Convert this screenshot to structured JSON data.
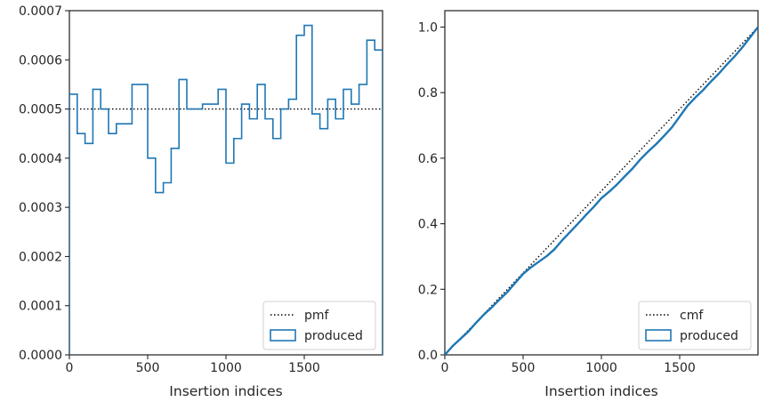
{
  "chart_data": [
    {
      "type": "line",
      "xlabel": "Insertion indices",
      "ylabel": "",
      "xlim": [
        0,
        2000
      ],
      "ylim": [
        0,
        0.0007
      ],
      "x_ticks": [
        0,
        500,
        1000,
        1500
      ],
      "x_tick_labels": [
        "0",
        "500",
        "1000",
        "1500"
      ],
      "y_ticks": [
        0,
        0.0001,
        0.0002,
        0.0003,
        0.0004,
        0.0005,
        0.0006,
        0.0007
      ],
      "y_tick_labels": [
        "0.0000",
        "0.0001",
        "0.0002",
        "0.0003",
        "0.0004",
        "0.0005",
        "0.0006",
        "0.0007"
      ],
      "legend_position": "lower-right",
      "series": [
        {
          "name": "pmf",
          "style": "dotted",
          "color": "#000000",
          "x": [
            0,
            2000
          ],
          "values": [
            0.0005,
            0.0005
          ]
        },
        {
          "name": "produced",
          "style": "step-histogram",
          "color": "#1f77b4",
          "bin_edges": [
            0,
            50,
            100,
            150,
            200,
            250,
            300,
            350,
            400,
            450,
            500,
            550,
            600,
            650,
            700,
            750,
            800,
            850,
            900,
            950,
            1000,
            1050,
            1100,
            1150,
            1200,
            1250,
            1300,
            1350,
            1400,
            1450,
            1500,
            1550,
            1600,
            1650,
            1700,
            1750,
            1800,
            1850,
            1900,
            1950,
            2000
          ],
          "values": [
            0.00053,
            0.00045,
            0.00043,
            0.00054,
            0.0005,
            0.00045,
            0.00047,
            0.00047,
            0.00055,
            0.00055,
            0.0004,
            0.00033,
            0.00035,
            0.00042,
            0.00056,
            0.0005,
            0.0005,
            0.00051,
            0.00051,
            0.00054,
            0.00039,
            0.00044,
            0.00051,
            0.00048,
            0.00055,
            0.00048,
            0.00044,
            0.0005,
            0.00052,
            0.00065,
            0.00067,
            0.00049,
            0.00046,
            0.00052,
            0.00048,
            0.00054,
            0.00051,
            0.00055,
            0.00064,
            0.00062
          ]
        }
      ]
    },
    {
      "type": "line",
      "xlabel": "Insertion indices",
      "ylabel": "",
      "xlim": [
        0,
        2000
      ],
      "ylim": [
        0,
        1.05
      ],
      "x_ticks": [
        0,
        500,
        1000,
        1500
      ],
      "x_tick_labels": [
        "0",
        "500",
        "1000",
        "1500"
      ],
      "y_ticks": [
        0,
        0.2,
        0.4,
        0.6,
        0.8,
        1.0
      ],
      "y_tick_labels": [
        "0.0",
        "0.2",
        "0.4",
        "0.6",
        "0.8",
        "1.0"
      ],
      "legend_position": "lower-right",
      "series": [
        {
          "name": "cmf",
          "style": "dotted",
          "color": "#000000",
          "x": [
            0,
            2000
          ],
          "values": [
            0,
            1.0
          ]
        },
        {
          "name": "produced",
          "style": "cumulative",
          "color": "#1f77b4",
          "x": [
            0,
            50,
            100,
            150,
            200,
            250,
            300,
            350,
            400,
            450,
            500,
            550,
            600,
            650,
            700,
            750,
            800,
            850,
            900,
            950,
            1000,
            1050,
            1100,
            1150,
            1200,
            1250,
            1300,
            1350,
            1400,
            1450,
            1500,
            1550,
            1600,
            1650,
            1700,
            1750,
            1800,
            1850,
            1900,
            1950,
            2000
          ],
          "values": [
            0,
            0.027,
            0.049,
            0.071,
            0.098,
            0.123,
            0.145,
            0.169,
            0.192,
            0.22,
            0.247,
            0.267,
            0.284,
            0.301,
            0.322,
            0.35,
            0.375,
            0.4,
            0.426,
            0.451,
            0.478,
            0.498,
            0.52,
            0.545,
            0.569,
            0.597,
            0.621,
            0.643,
            0.668,
            0.694,
            0.727,
            0.76,
            0.785,
            0.808,
            0.834,
            0.858,
            0.885,
            0.91,
            0.938,
            0.969,
            1.0
          ]
        }
      ]
    }
  ]
}
